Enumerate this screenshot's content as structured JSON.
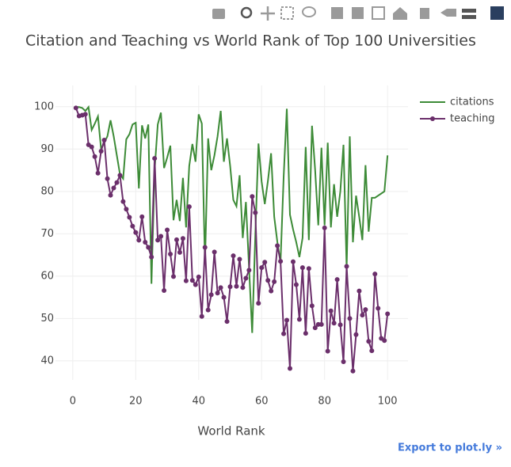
{
  "chart_data": {
    "type": "line",
    "title": "Citation and Teaching vs World Rank of Top 100 Universities",
    "x_label": "World Rank",
    "x": [
      1,
      2,
      3,
      4,
      5,
      6,
      7,
      8,
      9,
      10,
      11,
      12,
      13,
      14,
      15,
      16,
      17,
      18,
      19,
      20,
      21,
      22,
      23,
      24,
      25,
      26,
      27,
      28,
      29,
      30,
      31,
      32,
      33,
      34,
      35,
      36,
      37,
      38,
      39,
      40,
      41,
      42,
      43,
      44,
      45,
      46,
      47,
      48,
      49,
      50,
      51,
      52,
      53,
      54,
      55,
      56,
      57,
      58,
      59,
      60,
      61,
      62,
      63,
      64,
      65,
      66,
      67,
      68,
      69,
      70,
      71,
      72,
      73,
      74,
      75,
      76,
      77,
      78,
      79,
      80,
      81,
      82,
      83,
      84,
      85,
      86,
      87,
      88,
      89,
      90,
      91,
      92,
      93,
      94,
      95,
      96,
      97,
      98,
      99,
      100
    ],
    "series": [
      {
        "name": "citations",
        "color": "#3d8b37",
        "markers": false,
        "values": [
          99.9,
          99.9,
          99.7,
          99.0,
          99.9,
          94.5,
          96.0,
          97.7,
          90.0,
          91.5,
          93.0,
          96.8,
          93.0,
          88.5,
          84.0,
          83.0,
          92.3,
          93.5,
          95.8,
          96.2,
          80.7,
          95.6,
          92.5,
          95.8,
          58.2,
          85.0,
          95.8,
          98.6,
          85.5,
          88.0,
          90.8,
          73.2,
          78.0,
          73.0,
          83.2,
          71.5,
          86.0,
          91.2,
          87.0,
          98.2,
          96.0,
          63.0,
          92.5,
          85.0,
          88.5,
          93.0,
          99.0,
          87.0,
          92.5,
          86.0,
          78.0,
          76.5,
          83.8,
          69.0,
          77.5,
          62.0,
          46.6,
          70.0,
          91.3,
          82.3,
          77.0,
          82.5,
          89.0,
          74.0,
          68.0,
          63.3,
          83.5,
          99.5,
          74.5,
          71.0,
          68.0,
          64.5,
          69.0,
          90.5,
          68.5,
          95.5,
          85.0,
          72.0,
          90.3,
          72.0,
          91.5,
          71.5,
          81.7,
          74.0,
          80.0,
          91.0,
          62.0,
          93.0,
          68.0,
          79.0,
          74.0,
          68.5,
          86.2,
          70.5,
          78.5,
          78.5,
          79.0,
          79.5,
          80.0,
          88.5
        ]
      },
      {
        "name": "teaching",
        "color": "#6b2f6b",
        "markers": true,
        "values": [
          99.7,
          97.8,
          98.0,
          98.2,
          91.0,
          90.5,
          88.2,
          84.3,
          89.5,
          92.1,
          83.0,
          79.1,
          80.8,
          82.1,
          83.8,
          77.6,
          75.8,
          73.9,
          71.8,
          70.3,
          68.5,
          74.0,
          68.0,
          66.8,
          64.5,
          87.8,
          68.5,
          69.4,
          56.6,
          70.9,
          65.2,
          59.9,
          68.6,
          65.6,
          68.9,
          58.9,
          76.4,
          59.0,
          58.0,
          59.8,
          50.5,
          66.8,
          52.0,
          55.6,
          65.7,
          56.0,
          57.3,
          55.0,
          49.3,
          57.5,
          64.8,
          57.6,
          64.0,
          57.3,
          59.5,
          61.4,
          78.8,
          75.0,
          53.6,
          62.0,
          63.3,
          59.0,
          56.5,
          58.7,
          67.2,
          63.5,
          46.4,
          49.6,
          38.2,
          63.4,
          58.0,
          49.8,
          62.0,
          46.5,
          61.8,
          53.0,
          47.8,
          48.6,
          48.6,
          71.4,
          42.3,
          51.8,
          48.9,
          59.2,
          48.5,
          39.8,
          62.3,
          50.0,
          37.6,
          46.2,
          56.5,
          50.8,
          52.1,
          44.6,
          42.4,
          60.5,
          52.4,
          45.3,
          44.8,
          51.1
        ]
      }
    ],
    "xlim": [
      -5.5,
      106.5
    ],
    "xticks": [
      0,
      20,
      40,
      60,
      80,
      100
    ],
    "ylim": [
      35.5,
      105
    ],
    "yticks": [
      40,
      50,
      60,
      70,
      80,
      90,
      100
    ],
    "grid": true,
    "legend": "top-right"
  },
  "export_link": "Export to plot.ly »"
}
